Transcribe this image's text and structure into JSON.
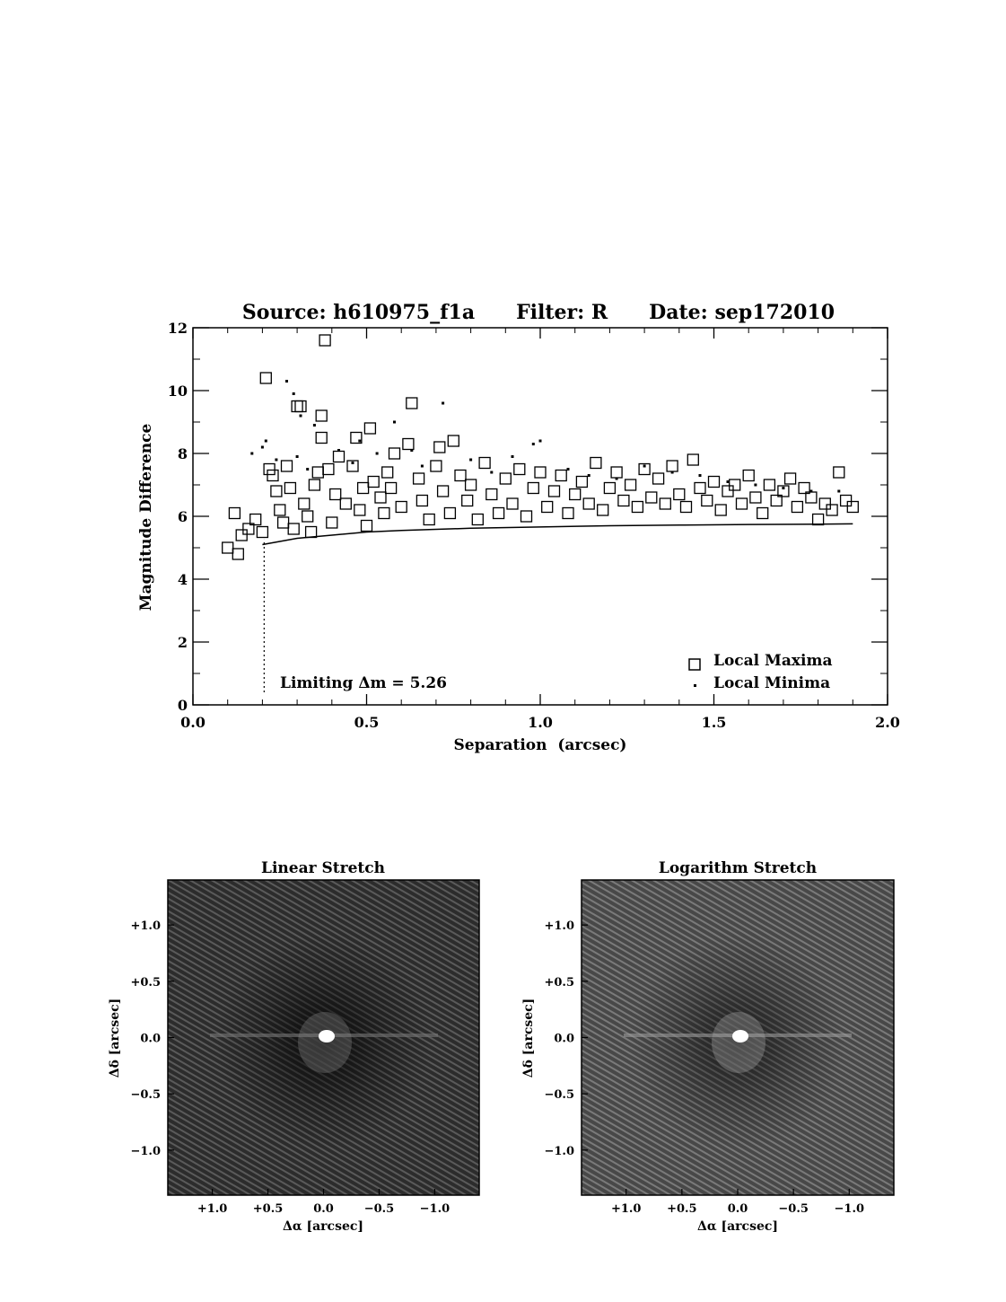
{
  "chart_data": [
    {
      "type": "scatter",
      "title": "Source: h610975_f1a      Filter: R      Date: sep172010",
      "xlabel": "Separation  (arcsec)",
      "ylabel": "Magnitude Difference",
      "xlim": [
        0.0,
        2.0
      ],
      "ylim": [
        0,
        12
      ],
      "xticks": [
        "0.0",
        "0.5",
        "1.0",
        "1.5",
        "2.0"
      ],
      "yticks": [
        "0",
        "2",
        "4",
        "6",
        "8",
        "10",
        "12"
      ],
      "legend_position": "bottom-right",
      "series": [
        {
          "name": "Local Maxima",
          "marker": "open-square",
          "points": [
            [
              0.1,
              5.0
            ],
            [
              0.12,
              6.1
            ],
            [
              0.13,
              4.8
            ],
            [
              0.14,
              5.4
            ],
            [
              0.16,
              5.6
            ],
            [
              0.18,
              5.9
            ],
            [
              0.2,
              5.5
            ],
            [
              0.21,
              10.4
            ],
            [
              0.22,
              7.5
            ],
            [
              0.23,
              7.3
            ],
            [
              0.24,
              6.8
            ],
            [
              0.25,
              6.2
            ],
            [
              0.26,
              5.8
            ],
            [
              0.27,
              7.6
            ],
            [
              0.28,
              6.9
            ],
            [
              0.29,
              5.6
            ],
            [
              0.3,
              9.5
            ],
            [
              0.31,
              9.5
            ],
            [
              0.32,
              6.4
            ],
            [
              0.33,
              6.0
            ],
            [
              0.34,
              5.5
            ],
            [
              0.35,
              7.0
            ],
            [
              0.36,
              7.4
            ],
            [
              0.37,
              8.5
            ],
            [
              0.37,
              9.2
            ],
            [
              0.38,
              11.6
            ],
            [
              0.39,
              7.5
            ],
            [
              0.4,
              5.8
            ],
            [
              0.41,
              6.7
            ],
            [
              0.42,
              7.9
            ],
            [
              0.44,
              6.4
            ],
            [
              0.46,
              7.6
            ],
            [
              0.47,
              8.5
            ],
            [
              0.48,
              6.2
            ],
            [
              0.49,
              6.9
            ],
            [
              0.5,
              5.7
            ],
            [
              0.51,
              8.8
            ],
            [
              0.52,
              7.1
            ],
            [
              0.54,
              6.6
            ],
            [
              0.55,
              6.1
            ],
            [
              0.56,
              7.4
            ],
            [
              0.57,
              6.9
            ],
            [
              0.58,
              8.0
            ],
            [
              0.6,
              6.3
            ],
            [
              0.62,
              8.3
            ],
            [
              0.63,
              9.6
            ],
            [
              0.65,
              7.2
            ],
            [
              0.66,
              6.5
            ],
            [
              0.68,
              5.9
            ],
            [
              0.7,
              7.6
            ],
            [
              0.71,
              8.2
            ],
            [
              0.72,
              6.8
            ],
            [
              0.74,
              6.1
            ],
            [
              0.75,
              8.4
            ],
            [
              0.77,
              7.3
            ],
            [
              0.79,
              6.5
            ],
            [
              0.8,
              7.0
            ],
            [
              0.82,
              5.9
            ],
            [
              0.84,
              7.7
            ],
            [
              0.86,
              6.7
            ],
            [
              0.88,
              6.1
            ],
            [
              0.9,
              7.2
            ],
            [
              0.92,
              6.4
            ],
            [
              0.94,
              7.5
            ],
            [
              0.96,
              6.0
            ],
            [
              0.98,
              6.9
            ],
            [
              1.0,
              7.4
            ],
            [
              1.02,
              6.3
            ],
            [
              1.04,
              6.8
            ],
            [
              1.06,
              7.3
            ],
            [
              1.08,
              6.1
            ],
            [
              1.1,
              6.7
            ],
            [
              1.12,
              7.1
            ],
            [
              1.14,
              6.4
            ],
            [
              1.16,
              7.7
            ],
            [
              1.18,
              6.2
            ],
            [
              1.2,
              6.9
            ],
            [
              1.22,
              7.4
            ],
            [
              1.24,
              6.5
            ],
            [
              1.26,
              7.0
            ],
            [
              1.28,
              6.3
            ],
            [
              1.3,
              7.5
            ],
            [
              1.32,
              6.6
            ],
            [
              1.34,
              7.2
            ],
            [
              1.36,
              6.4
            ],
            [
              1.38,
              7.6
            ],
            [
              1.4,
              6.7
            ],
            [
              1.42,
              6.3
            ],
            [
              1.44,
              7.8
            ],
            [
              1.46,
              6.9
            ],
            [
              1.48,
              6.5
            ],
            [
              1.5,
              7.1
            ],
            [
              1.52,
              6.2
            ],
            [
              1.54,
              6.8
            ],
            [
              1.56,
              7.0
            ],
            [
              1.58,
              6.4
            ],
            [
              1.6,
              7.3
            ],
            [
              1.62,
              6.6
            ],
            [
              1.64,
              6.1
            ],
            [
              1.66,
              7.0
            ],
            [
              1.68,
              6.5
            ],
            [
              1.7,
              6.8
            ],
            [
              1.72,
              7.2
            ],
            [
              1.74,
              6.3
            ],
            [
              1.76,
              6.9
            ],
            [
              1.78,
              6.6
            ],
            [
              1.8,
              5.9
            ],
            [
              1.82,
              6.4
            ],
            [
              1.84,
              6.2
            ],
            [
              1.86,
              7.4
            ],
            [
              1.88,
              6.5
            ],
            [
              1.9,
              6.3
            ]
          ]
        },
        {
          "name": "Local Minima",
          "marker": "dot",
          "points": [
            [
              0.17,
              8.0
            ],
            [
              0.2,
              8.2
            ],
            [
              0.21,
              8.4
            ],
            [
              0.24,
              7.8
            ],
            [
              0.27,
              10.3
            ],
            [
              0.29,
              9.9
            ],
            [
              0.3,
              7.9
            ],
            [
              0.31,
              9.2
            ],
            [
              0.33,
              7.5
            ],
            [
              0.35,
              8.9
            ],
            [
              0.42,
              8.1
            ],
            [
              0.46,
              7.7
            ],
            [
              0.48,
              8.4
            ],
            [
              0.53,
              8.0
            ],
            [
              0.58,
              9.0
            ],
            [
              0.63,
              8.1
            ],
            [
              0.66,
              7.6
            ],
            [
              0.72,
              9.6
            ],
            [
              0.8,
              7.8
            ],
            [
              0.86,
              7.4
            ],
            [
              0.92,
              7.9
            ],
            [
              0.98,
              8.3
            ],
            [
              1.0,
              8.4
            ],
            [
              1.08,
              7.5
            ],
            [
              1.14,
              7.3
            ],
            [
              1.22,
              7.2
            ],
            [
              1.3,
              7.6
            ],
            [
              1.38,
              7.4
            ],
            [
              1.46,
              7.3
            ],
            [
              1.54,
              7.1
            ],
            [
              1.62,
              7.0
            ],
            [
              1.7,
              6.9
            ],
            [
              1.78,
              6.8
            ],
            [
              1.86,
              6.8
            ]
          ]
        }
      ],
      "limit_curve": {
        "x": [
          0.2,
          0.3,
          0.4,
          0.5,
          0.6,
          0.8,
          1.0,
          1.2,
          1.4,
          1.6,
          1.8,
          1.9
        ],
        "y": [
          5.1,
          5.3,
          5.4,
          5.5,
          5.55,
          5.62,
          5.66,
          5.7,
          5.72,
          5.74,
          5.75,
          5.76
        ]
      },
      "limit_marker": {
        "x": 0.205,
        "y_from": 0.4,
        "y_to": 5.26
      },
      "annotation": "Limiting Δm = 5.26",
      "legend": [
        "Local Maxima",
        "Local Minima"
      ]
    },
    {
      "type": "heatmap",
      "title": "Linear Stretch",
      "xlabel": "Δα [arcsec]",
      "ylabel": "Δδ [arcsec]",
      "xticks": [
        "+1.0",
        "+0.5",
        "0.0",
        "−0.5",
        "−1.0"
      ],
      "yticks": [
        "+1.0",
        "+0.5",
        "0.0",
        "−0.5",
        "−1.0"
      ],
      "xlim": [
        1.4,
        -1.4
      ],
      "ylim": [
        -1.4,
        1.4
      ],
      "background": "#2a2a2a"
    },
    {
      "type": "heatmap",
      "title": "Logarithm Stretch",
      "xlabel": "Δα [arcsec]",
      "ylabel": "Δδ [arcsec]",
      "xticks": [
        "+1.0",
        "+0.5",
        "0.0",
        "−0.5",
        "−1.0"
      ],
      "yticks": [
        "+1.0",
        "+0.5",
        "0.0",
        "−0.5",
        "−1.0"
      ],
      "xlim": [
        1.4,
        -1.4
      ],
      "ylim": [
        -1.4,
        1.4
      ],
      "background": "#4a4a4a"
    }
  ]
}
